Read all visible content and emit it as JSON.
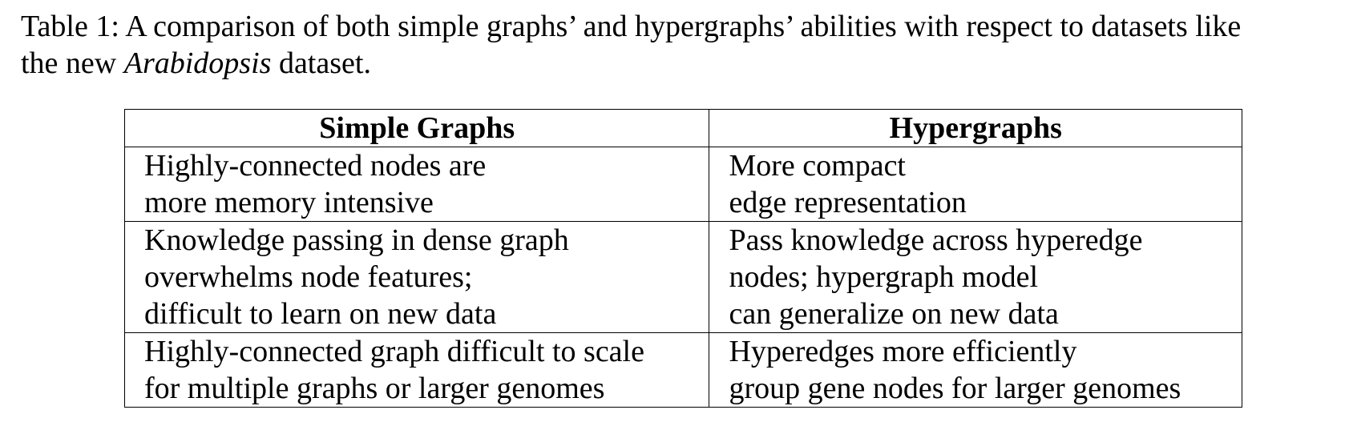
{
  "caption": {
    "line1": "Table 1: A comparison of both simple graphs’ and hypergraphs’ abilities with respect to datasets like",
    "line2_prefix": "the new ",
    "line2_italic": "Arabidopsis",
    "line2_suffix": " dataset."
  },
  "table": {
    "headers": [
      "Simple Graphs",
      "Hypergraphs"
    ],
    "rows": [
      {
        "simple": [
          "Highly-connected nodes are",
          "more memory intensive"
        ],
        "hyper": [
          "More compact",
          "edge representation"
        ]
      },
      {
        "simple": [
          "Knowledge passing in dense graph",
          "overwhelms node features;",
          "difficult to learn on new data"
        ],
        "hyper": [
          "Pass knowledge across hyperedge",
          "nodes; hypergraph model",
          "can generalize on new data"
        ]
      },
      {
        "simple": [
          "Highly-connected graph difficult to scale",
          "for multiple graphs or larger genomes"
        ],
        "hyper": [
          "Hyperedges more efficiently",
          "group gene nodes for larger genomes"
        ]
      }
    ]
  }
}
